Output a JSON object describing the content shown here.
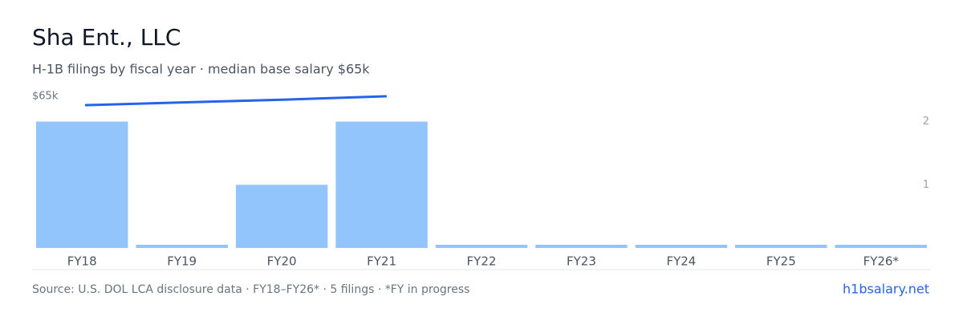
{
  "chart_data": {
    "type": "bar",
    "title": "Sha Ent., LLC",
    "subtitle": "H-1B filings by fiscal year · median base salary $65k",
    "categories": [
      "FY18",
      "FY19",
      "FY20",
      "FY21",
      "FY22",
      "FY23",
      "FY24",
      "FY25",
      "FY26*"
    ],
    "series": [
      {
        "name": "Filings",
        "color": "#93c5fd",
        "values": [
          2,
          0,
          1,
          2,
          0,
          0,
          0,
          0,
          0
        ]
      },
      {
        "name": "Median base salary",
        "color": "#2563eb",
        "axis": "y2",
        "type": "line",
        "values": [
          61200,
          62400,
          63600,
          65000,
          null,
          null,
          null,
          null,
          null
        ]
      }
    ],
    "ylim": [
      0,
      2.4
    ],
    "yticks": [
      1,
      2
    ],
    "y2lim": [
      0,
      65000
    ],
    "y2ticks": [
      {
        "value": 65000,
        "label": "$65k"
      }
    ],
    "source": "Source: U.S. DOL LCA disclosure data · FY18–FY26* · 5 filings · *FY in progress",
    "brand": "h1bsalary.net"
  }
}
